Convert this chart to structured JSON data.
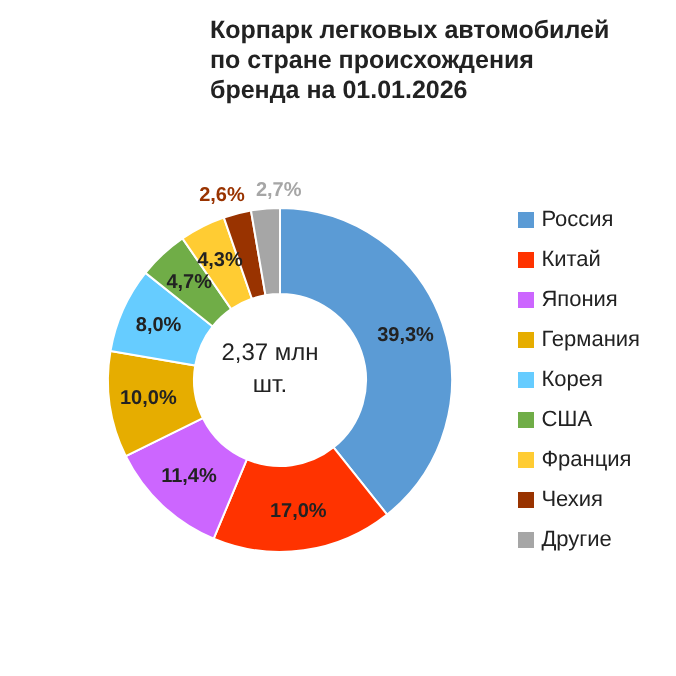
{
  "chart_data": {
    "type": "donut",
    "title": "Корпарк легковых автомобилей по стране происхождения бренда на 01.01.2026",
    "categories": [
      "Россия",
      "Китай",
      "Япония",
      "Германия",
      "Корея",
      "США",
      "Франция",
      "Чехия",
      "Другие"
    ],
    "values": [
      39.3,
      17.0,
      11.4,
      10.0,
      8.0,
      4.7,
      4.3,
      2.6,
      2.7
    ],
    "value_labels": [
      "39,3%",
      "17,0%",
      "11,4%",
      "10,0%",
      "8,0%",
      "4,7%",
      "4,3%",
      "2,6%",
      "2,7%"
    ],
    "colors": [
      "#5b9bd5",
      "#ff3300",
      "#cc66ff",
      "#e6ad00",
      "#66ccff",
      "#70ad47",
      "#ffcc33",
      "#993300",
      "#a6a6a6"
    ],
    "annotations": [
      "2,37 млн шт."
    ],
    "legend": "right"
  }
}
